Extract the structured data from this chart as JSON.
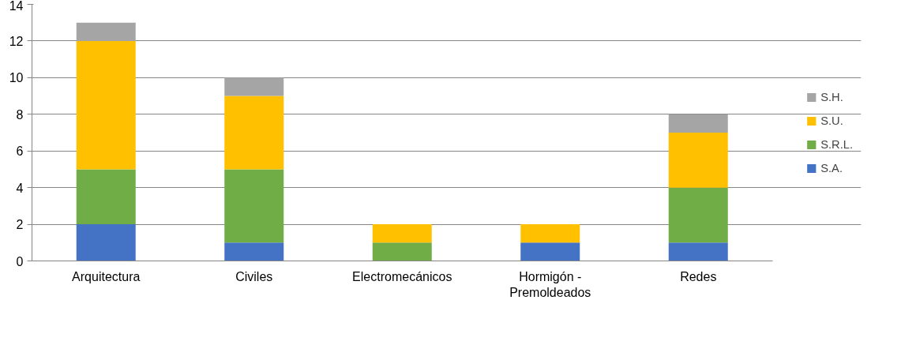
{
  "chart_data": {
    "type": "bar",
    "stacked": true,
    "categories": [
      "Arquitectura",
      "Civiles",
      "Electromecánicos",
      "Hormigón - Premoldeados",
      "Redes"
    ],
    "series": [
      {
        "name": "S.A.",
        "color": "#4472c4",
        "values": [
          2,
          1,
          0,
          1,
          1
        ]
      },
      {
        "name": "S.R.L.",
        "color": "#70ad47",
        "values": [
          3,
          4,
          1,
          0,
          3
        ]
      },
      {
        "name": "S.U.",
        "color": "#ffc000",
        "values": [
          7,
          4,
          1,
          1,
          3
        ]
      },
      {
        "name": "S.H.",
        "color": "#a5a5a5",
        "values": [
          1,
          1,
          0,
          0,
          1
        ]
      }
    ],
    "ylim": [
      0,
      14
    ],
    "yticks": [
      0,
      2,
      4,
      6,
      8,
      10,
      12,
      14
    ],
    "grid": "y",
    "legend": "right"
  }
}
